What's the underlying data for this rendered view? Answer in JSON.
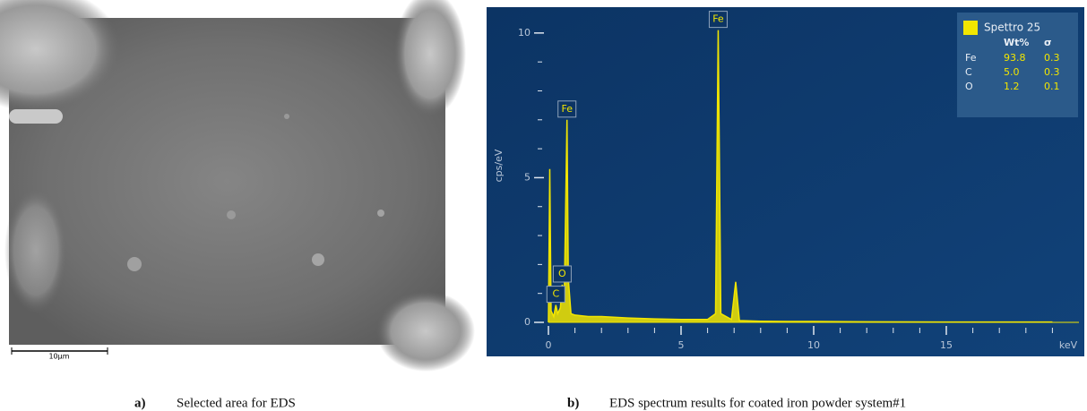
{
  "panels": [
    {
      "label": "a)",
      "caption": "Selected area for EDS",
      "scale_bar": "10µm"
    },
    {
      "label": "b)",
      "caption": "EDS spectrum results for coated iron powder system#1"
    }
  ],
  "chart_data": {
    "type": "area",
    "y_label": "cps/eV",
    "x_label": "keV",
    "x": [
      0,
      0.05,
      0.1,
      0.2,
      0.28,
      0.35,
      0.45,
      0.52,
      0.6,
      0.7,
      0.75,
      0.85,
      1.0,
      1.5,
      2,
      3,
      4,
      5,
      6,
      6.3,
      6.4,
      6.5,
      6.9,
      7.06,
      7.2,
      7.6,
      8,
      9,
      10,
      12,
      15,
      19
    ],
    "series": [
      {
        "name": "Spettro 25",
        "color": "#f2e600",
        "values": [
          0,
          5.3,
          0.4,
          0.2,
          0.6,
          0.3,
          0.5,
          1.3,
          1.0,
          7.0,
          1.5,
          0.3,
          0.25,
          0.2,
          0.2,
          0.15,
          0.12,
          0.1,
          0.1,
          0.3,
          10.1,
          0.3,
          0.1,
          1.4,
          0.06,
          0.05,
          0.04,
          0.03,
          0.03,
          0.02,
          0.01,
          0.01
        ]
      }
    ],
    "xlim": [
      0,
      20
    ],
    "ylim": [
      0,
      10.8
    ],
    "xticks": [
      0,
      5,
      10,
      15
    ],
    "yticks": [
      0,
      5,
      10
    ],
    "x_minor_ticks": [
      1,
      2,
      3,
      4,
      6,
      7,
      8,
      9,
      11,
      12,
      13,
      14,
      16,
      17,
      18,
      19
    ],
    "y_minor_ticks": [
      1,
      2,
      3,
      4,
      6,
      7,
      8,
      9
    ],
    "annotations": [
      {
        "text": "Fe",
        "x": 6.4,
        "y": 10.1
      },
      {
        "text": "Fe",
        "x": 0.7,
        "y": 7.0
      },
      {
        "text": "O",
        "x": 0.52,
        "y": 1.3
      },
      {
        "text": "C",
        "x": 0.28,
        "y": 0.6
      }
    ],
    "legend_table": {
      "columns": [
        "Wt%",
        "σ"
      ],
      "rows": [
        {
          "element": "Fe",
          "cells": [
            "93.8",
            "0.3"
          ]
        },
        {
          "element": "C",
          "cells": [
            "5.0",
            "0.3"
          ]
        },
        {
          "element": "O",
          "cells": [
            "1.2",
            "0.1"
          ]
        }
      ]
    }
  }
}
